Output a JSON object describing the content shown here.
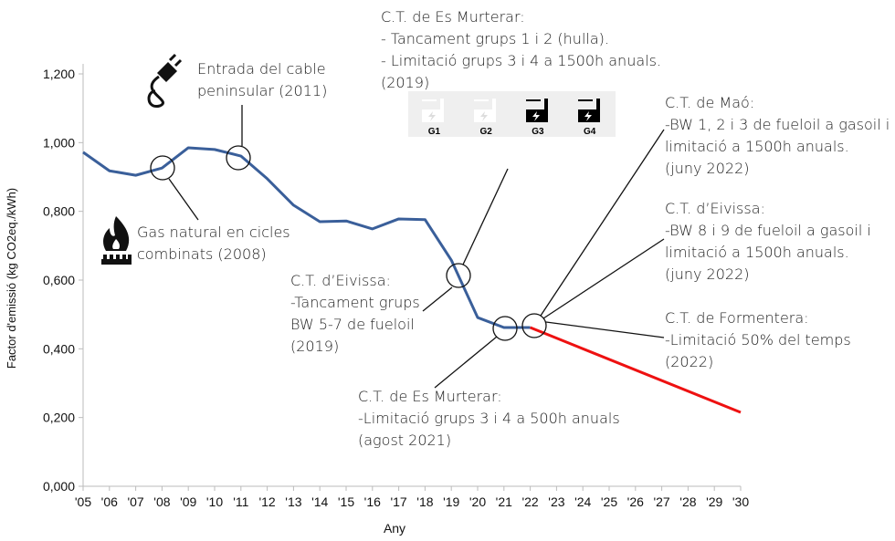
{
  "chart_data": {
    "type": "line",
    "xlabel": "Any",
    "ylabel": "Factor d'emissió (kg CO2eq./kWh)",
    "ylim": [
      0,
      1.2
    ],
    "yticks": [
      "0,000",
      "0,200",
      "0,400",
      "0,600",
      "0,800",
      "1,000",
      "1,200"
    ],
    "ytick_values": [
      0,
      0.2,
      0.4,
      0.6,
      0.8,
      1.0,
      1.2
    ],
    "x_tick_labels": [
      "'05",
      "'06",
      "'07",
      "'08",
      "'09",
      "'10",
      "'11",
      "'12",
      "'13",
      "'14",
      "'15",
      "'16",
      "'17",
      "'18",
      "'19",
      "'20",
      "'21",
      "'22",
      "'23",
      "'24",
      "'25",
      "'26",
      "'27",
      "'28",
      "'29",
      "'30"
    ],
    "xlim": [
      2005,
      2030
    ],
    "grid": false,
    "series": [
      {
        "color": "#3a5f9a",
        "x": [
          2005,
          2006,
          2007,
          2008,
          2009,
          2010,
          2011,
          2012,
          2013,
          2014,
          2015,
          2016,
          2017,
          2018,
          2019,
          2020,
          2021,
          2022
        ],
        "values": [
          0.972,
          0.918,
          0.905,
          0.926,
          0.985,
          0.98,
          0.961,
          0.895,
          0.818,
          0.77,
          0.772,
          0.749,
          0.778,
          0.776,
          0.658,
          0.491,
          0.462,
          0.462
        ]
      },
      {
        "color": "#ee1111",
        "x": [
          2022,
          2030
        ],
        "values": [
          0.462,
          0.215
        ]
      }
    ],
    "annotations": [
      {
        "id": "cable",
        "lines": [
          "Entrada del cable",
          "peninsular (2011)"
        ],
        "icon": "power-plug-icon"
      },
      {
        "id": "gas",
        "lines": [
          "Gas natural en cicles",
          "combinats (2008)"
        ],
        "icon": "gas-flame-icon"
      },
      {
        "id": "murterar2019",
        "lines": [
          "C.T. de Es Murterar:",
          "- Tancament grups 1 i 2 (hulla).",
          "- Limitació grups 3 i 4 a 1500h anuals.",
          "(2019)"
        ]
      },
      {
        "id": "eivissa2019",
        "lines": [
          "C.T. d’Eivissa:",
          "-Tancament grups",
          "BW 5-7 de fueloil",
          "(2019)"
        ]
      },
      {
        "id": "murterar2021",
        "lines": [
          "C.T. de Es Murterar:",
          "-Limitació grups 3 i 4 a 500h anuals",
          "(agost 2021)"
        ]
      },
      {
        "id": "mao",
        "lines": [
          "C.T. de Maó:",
          "-BW 1, 2 i 3 de fueloil a gasoil i",
          "limitació a 1500h anuals.",
          "(juny 2022)"
        ]
      },
      {
        "id": "eivissa2022",
        "lines": [
          "C.T. d’Eivissa:",
          "-BW 8 i 9 de fueloil a gasoil i",
          "limitació a 1500h anuals.",
          "(juny 2022)"
        ]
      },
      {
        "id": "formentera",
        "lines": [
          "C.T. de Formentera:",
          "-Limitació 50% del temps",
          "(2022)"
        ]
      }
    ],
    "plant_groups": [
      {
        "label": "G1",
        "active": false
      },
      {
        "label": "G2",
        "active": false
      },
      {
        "label": "G3",
        "active": true
      },
      {
        "label": "G4",
        "active": true
      }
    ]
  }
}
